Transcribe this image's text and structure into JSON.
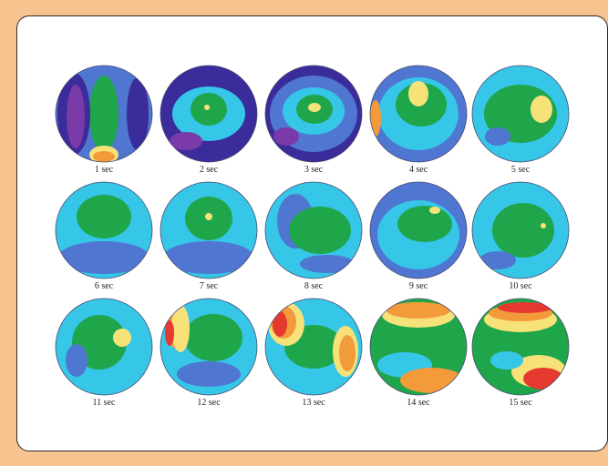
{
  "frames": [
    {
      "label": "1 sec"
    },
    {
      "label": "2 sec"
    },
    {
      "label": "3 sec"
    },
    {
      "label": "4 sec"
    },
    {
      "label": "5 sec"
    },
    {
      "label": "6 sec"
    },
    {
      "label": "7 sec"
    },
    {
      "label": "8 sec"
    },
    {
      "label": "9 sec"
    },
    {
      "label": "10 sec"
    },
    {
      "label": "11 sec"
    },
    {
      "label": "12 sec"
    },
    {
      "label": "13 sec"
    },
    {
      "label": "14 sec"
    },
    {
      "label": "15 sec"
    }
  ],
  "palette": {
    "cyan": "#36c6e8",
    "green": "#1fa64a",
    "blue": "#4f76d0",
    "dark_blue": "#3a2c9a",
    "purple": "#7a3aa8",
    "yellow": "#f7e27a",
    "orange": "#f39a3a",
    "red": "#e5392f"
  }
}
